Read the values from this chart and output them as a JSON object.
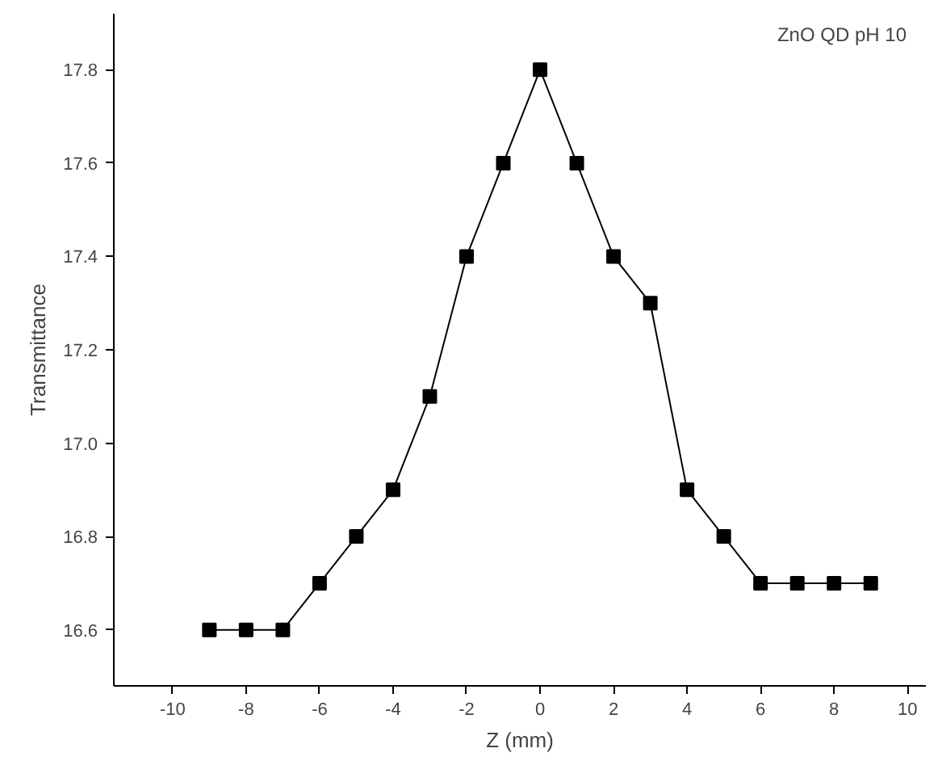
{
  "chart_data": {
    "type": "line",
    "xlabel": "Z (mm)",
    "ylabel": "Transmittance",
    "annotations": [
      "ZnO QD pH 10"
    ],
    "x": [
      -9,
      -8,
      -7,
      -6,
      -5,
      -4,
      -3,
      -2,
      -1,
      0,
      1,
      2,
      3,
      4,
      5,
      6,
      7,
      8,
      9
    ],
    "series": [
      {
        "color": "#000000",
        "values": [
          16.6,
          16.6,
          16.6,
          16.7,
          16.8,
          16.9,
          17.1,
          17.4,
          17.6,
          17.8,
          17.6,
          17.4,
          17.3,
          16.9,
          16.8,
          16.7,
          16.7,
          16.7,
          16.7
        ]
      }
    ],
    "xlim": [
      -11.6,
      10.5
    ],
    "ylim": [
      16.48,
      17.92
    ],
    "xticks": [
      -10,
      -8,
      -6,
      -4,
      -2,
      0,
      2,
      4,
      6,
      8,
      10
    ],
    "yticks": [
      {
        "value": 16.6,
        "label": "16.6"
      },
      {
        "value": 16.8,
        "label": "16.8"
      },
      {
        "value": 17.0,
        "label": "17.0"
      },
      {
        "value": 17.2,
        "label": "17.2"
      },
      {
        "value": 17.4,
        "label": "17.4"
      },
      {
        "value": 17.6,
        "label": "17.6"
      },
      {
        "value": 17.8,
        "label": "17.8"
      }
    ],
    "grid": false,
    "marker": "square",
    "line_style": "solid"
  }
}
